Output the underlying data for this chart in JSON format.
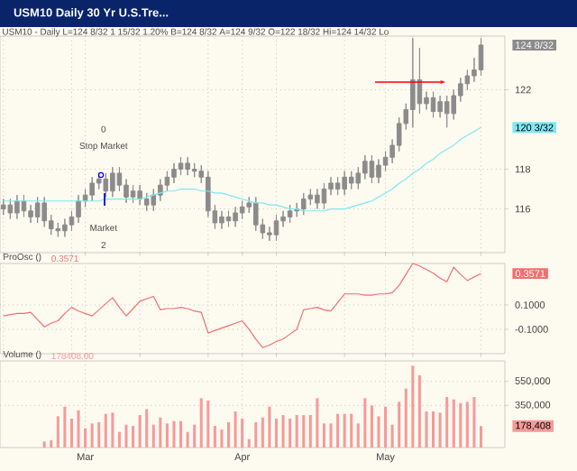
{
  "chart_data": [
    {
      "type": "candlestick",
      "title": "USM10 Daily 30 Yr U.S.Tre...",
      "subtitle": "USM10 - Daily   L=124 8/32   1 15/32   1.20%   B=124 8/32   A=124 9/32   O=122 18/32   Hi=124 14/32   Lo",
      "categories": [
        null,
        null,
        null,
        null,
        null,
        null,
        null,
        null,
        null,
        null,
        null,
        null,
        null,
        null,
        null,
        null,
        null,
        null,
        null,
        null,
        null,
        null,
        null,
        null,
        null,
        null,
        null,
        null,
        null,
        null,
        null,
        null,
        null,
        null,
        null,
        null,
        null,
        null,
        null,
        null,
        null,
        null,
        null,
        null,
        null,
        null,
        null,
        null,
        null,
        null,
        null,
        null,
        null,
        null,
        null,
        null,
        null,
        null,
        null,
        null,
        null,
        null,
        null,
        null,
        null,
        null,
        null,
        null,
        null,
        null,
        null
      ],
      "ylim": [
        113.8,
        124.7
      ],
      "yticks": [
        116,
        118,
        122
      ],
      "grid": true,
      "series": [
        {
          "type": "candlestick",
          "color": "#8c8c8c",
          "ohlc": [
            [
              116.0,
              116.5,
              115.7,
              116.2
            ],
            [
              116.2,
              116.5,
              115.5,
              115.8
            ],
            [
              115.8,
              116.7,
              115.5,
              116.4
            ],
            [
              116.4,
              116.7,
              115.6,
              115.9
            ],
            [
              115.9,
              116.2,
              115.3,
              115.6
            ],
            [
              115.6,
              116.6,
              115.3,
              116.3
            ],
            [
              116.3,
              116.6,
              115.1,
              115.4
            ],
            [
              115.4,
              115.7,
              114.7,
              115.0
            ],
            [
              115.0,
              115.3,
              114.6,
              114.9
            ],
            [
              114.9,
              115.5,
              114.6,
              115.2
            ],
            [
              115.2,
              115.9,
              114.9,
              115.6
            ],
            [
              115.6,
              116.7,
              115.3,
              116.4
            ],
            [
              116.4,
              117.0,
              116.1,
              116.7
            ],
            [
              116.7,
              117.6,
              116.4,
              117.3
            ],
            [
              117.3,
              117.8,
              117.0,
              117.5
            ],
            [
              117.5,
              117.8,
              116.6,
              116.9
            ],
            [
              116.9,
              118.1,
              116.6,
              117.8
            ],
            [
              117.8,
              118.1,
              116.9,
              117.2
            ],
            [
              117.2,
              117.5,
              116.3,
              116.6
            ],
            [
              116.6,
              117.2,
              116.3,
              116.9
            ],
            [
              116.9,
              117.2,
              116.2,
              116.5
            ],
            [
              116.5,
              116.8,
              115.9,
              116.2
            ],
            [
              116.2,
              117.0,
              115.9,
              116.7
            ],
            [
              116.7,
              117.5,
              116.4,
              117.2
            ],
            [
              117.2,
              117.9,
              116.9,
              117.6
            ],
            [
              117.6,
              118.3,
              117.3,
              118.0
            ],
            [
              118.0,
              118.6,
              117.7,
              118.3
            ],
            [
              118.3,
              118.6,
              117.7,
              118.0
            ],
            [
              118.0,
              118.3,
              117.6,
              117.9
            ],
            [
              117.9,
              118.2,
              117.3,
              117.6
            ],
            [
              117.6,
              117.9,
              115.6,
              115.9
            ],
            [
              115.9,
              116.2,
              115.0,
              115.3
            ],
            [
              115.3,
              115.9,
              115.0,
              115.6
            ],
            [
              115.6,
              115.9,
              115.1,
              115.4
            ],
            [
              115.4,
              116.1,
              115.1,
              115.8
            ],
            [
              115.8,
              116.4,
              115.5,
              116.1
            ],
            [
              116.1,
              116.6,
              115.8,
              116.3
            ],
            [
              116.3,
              116.6,
              114.9,
              115.2
            ],
            [
              115.2,
              115.5,
              114.5,
              114.8
            ],
            [
              114.8,
              115.1,
              114.4,
              114.7
            ],
            [
              114.7,
              115.7,
              114.4,
              115.4
            ],
            [
              115.4,
              115.9,
              115.1,
              115.6
            ],
            [
              115.6,
              116.2,
              115.3,
              115.9
            ],
            [
              115.9,
              116.3,
              115.6,
              116.0
            ],
            [
              116.0,
              116.8,
              115.7,
              116.5
            ],
            [
              116.5,
              117.0,
              116.2,
              116.7
            ],
            [
              116.7,
              117.0,
              116.0,
              116.3
            ],
            [
              116.3,
              117.3,
              116.0,
              117.0
            ],
            [
              117.0,
              117.6,
              116.7,
              117.3
            ],
            [
              117.3,
              117.6,
              116.7,
              117.0
            ],
            [
              117.0,
              117.9,
              116.7,
              117.6
            ],
            [
              117.6,
              117.9,
              117.0,
              117.3
            ],
            [
              117.3,
              118.1,
              117.0,
              117.8
            ],
            [
              117.8,
              118.7,
              117.5,
              118.4
            ],
            [
              118.4,
              118.7,
              117.3,
              117.6
            ],
            [
              117.6,
              118.5,
              117.3,
              118.2
            ],
            [
              118.2,
              118.9,
              117.9,
              118.6
            ],
            [
              118.6,
              119.5,
              118.3,
              119.2
            ],
            [
              119.2,
              120.6,
              118.9,
              120.3
            ],
            [
              120.3,
              121.3,
              120.0,
              121.0
            ],
            [
              121.0,
              124.6,
              120.1,
              122.5
            ],
            [
              122.5,
              124.1,
              120.8,
              121.3
            ],
            [
              121.3,
              121.9,
              121.0,
              121.6
            ],
            [
              121.6,
              121.9,
              120.6,
              120.9
            ],
            [
              120.9,
              121.7,
              120.6,
              121.4
            ],
            [
              121.4,
              121.7,
              120.1,
              120.8
            ],
            [
              120.8,
              122.0,
              120.5,
              121.7
            ],
            [
              121.7,
              122.6,
              121.4,
              122.3
            ],
            [
              122.3,
              123.0,
              122.0,
              122.7
            ],
            [
              122.7,
              123.6,
              122.4,
              123.0
            ],
            [
              123.0,
              124.6,
              122.7,
              124.25
            ]
          ]
        },
        {
          "type": "line",
          "color": "#7fe8f0",
          "values": [
            116.4,
            116.4,
            116.4,
            116.4,
            116.4,
            116.4,
            116.4,
            116.4,
            116.4,
            116.4,
            116.4,
            116.4,
            116.4,
            116.4,
            116.4,
            116.5,
            116.5,
            116.5,
            116.5,
            116.5,
            116.5,
            116.6,
            116.7,
            116.8,
            116.9,
            116.9,
            117.0,
            117.0,
            117.0,
            116.9,
            116.9,
            116.8,
            116.8,
            116.7,
            116.6,
            116.5,
            116.4,
            116.3,
            116.3,
            116.2,
            116.2,
            116.1,
            116.0,
            116.0,
            115.9,
            115.9,
            115.9,
            115.9,
            116.0,
            116.0,
            116.0,
            116.1,
            116.2,
            116.3,
            116.4,
            116.6,
            116.8,
            117.0,
            117.3,
            117.5,
            117.8,
            118.0,
            118.3,
            118.5,
            118.8,
            119.0,
            119.2,
            119.5,
            119.7,
            119.9,
            120.1
          ]
        }
      ],
      "annotations": [
        "0",
        "Stop Market",
        "Market",
        "2",
        "124 8/32",
        "120 3/32"
      ]
    },
    {
      "type": "line",
      "title": "ProOsc ()",
      "subtitle": "0.3571",
      "categories": [
        null,
        null,
        null,
        null,
        null,
        null,
        null,
        null,
        null,
        null,
        null,
        null,
        null,
        null,
        null,
        null,
        null,
        null,
        null,
        null,
        null,
        null,
        null,
        null,
        null,
        null,
        null,
        null,
        null,
        null,
        null,
        null,
        null,
        null,
        null,
        null,
        null,
        null,
        null,
        null,
        null,
        null,
        null,
        null,
        null,
        null,
        null,
        null,
        null,
        null,
        null,
        null,
        null,
        null,
        null,
        null,
        null,
        null,
        null,
        null,
        null,
        null,
        null,
        null,
        null,
        null,
        null,
        null,
        null,
        null,
        null
      ],
      "ylim": [
        -0.3,
        0.44
      ],
      "yticks": [
        {
          "value": 0.1,
          "label": "0.1000"
        },
        {
          "value": -0.1,
          "label": "-0.1000"
        }
      ],
      "grid": true,
      "series": [
        {
          "color": "#f07070",
          "values": [
            0.01,
            0.02,
            0.03,
            0.03,
            0.04,
            -0.02,
            -0.08,
            -0.05,
            -0.03,
            0.03,
            0.08,
            0.05,
            0.03,
            0.01,
            0.06,
            0.11,
            0.16,
            0.08,
            0.01,
            0.07,
            0.13,
            0.15,
            0.17,
            0.06,
            0.07,
            0.07,
            0.08,
            0.07,
            0.05,
            0.04,
            -0.13,
            -0.11,
            -0.09,
            -0.07,
            -0.05,
            -0.03,
            -0.1,
            -0.18,
            -0.25,
            -0.23,
            -0.2,
            -0.18,
            -0.14,
            -0.1,
            0.06,
            0.07,
            0.08,
            0.06,
            0.05,
            0.12,
            0.19,
            0.19,
            0.19,
            0.18,
            0.18,
            0.19,
            0.19,
            0.2,
            0.26,
            0.35,
            0.44,
            0.42,
            0.39,
            0.36,
            0.32,
            0.29,
            0.41,
            0.35,
            0.3,
            0.33,
            0.3571
          ]
        }
      ],
      "annotations": [
        "0.3571"
      ]
    },
    {
      "type": "bar",
      "title": "Volume ()",
      "subtitle": "178408.00",
      "categories": [
        null,
        null,
        null,
        null,
        null,
        null,
        null,
        null,
        null,
        null,
        null,
        null,
        "Mar",
        null,
        null,
        null,
        null,
        null,
        null,
        null,
        null,
        null,
        null,
        null,
        null,
        null,
        null,
        null,
        null,
        null,
        null,
        null,
        null,
        null,
        null,
        "Apr",
        null,
        null,
        null,
        null,
        null,
        null,
        null,
        null,
        null,
        null,
        null,
        null,
        null,
        null,
        null,
        null,
        null,
        null,
        null,
        null,
        "May",
        null,
        null,
        null,
        null,
        null,
        null,
        null,
        null,
        null,
        null,
        null,
        null,
        null,
        null
      ],
      "ylim": [
        0,
        720000
      ],
      "yticks": [
        {
          "value": 350000,
          "label": "350,000"
        },
        {
          "value": 550000,
          "label": "550,000"
        }
      ],
      "grid": true,
      "series": [
        {
          "color": "#f59a9a",
          "values": [
            null,
            null,
            null,
            null,
            null,
            null,
            50000,
            60000,
            260000,
            340000,
            240000,
            310000,
            160000,
            200000,
            210000,
            280000,
            290000,
            130000,
            190000,
            180000,
            270000,
            320000,
            190000,
            250000,
            200000,
            220000,
            220000,
            130000,
            190000,
            410000,
            390000,
            180000,
            150000,
            210000,
            300000,
            240000,
            70000,
            210000,
            250000,
            340000,
            240000,
            270000,
            240000,
            270000,
            270000,
            270000,
            410000,
            200000,
            200000,
            280000,
            280000,
            280000,
            200000,
            410000,
            350000,
            260000,
            340000,
            190000,
            380000,
            490000,
            680000,
            600000,
            300000,
            300000,
            290000,
            420000,
            400000,
            370000,
            380000,
            420000,
            178408
          ]
        }
      ],
      "annotations": [
        "178,408"
      ]
    }
  ]
}
